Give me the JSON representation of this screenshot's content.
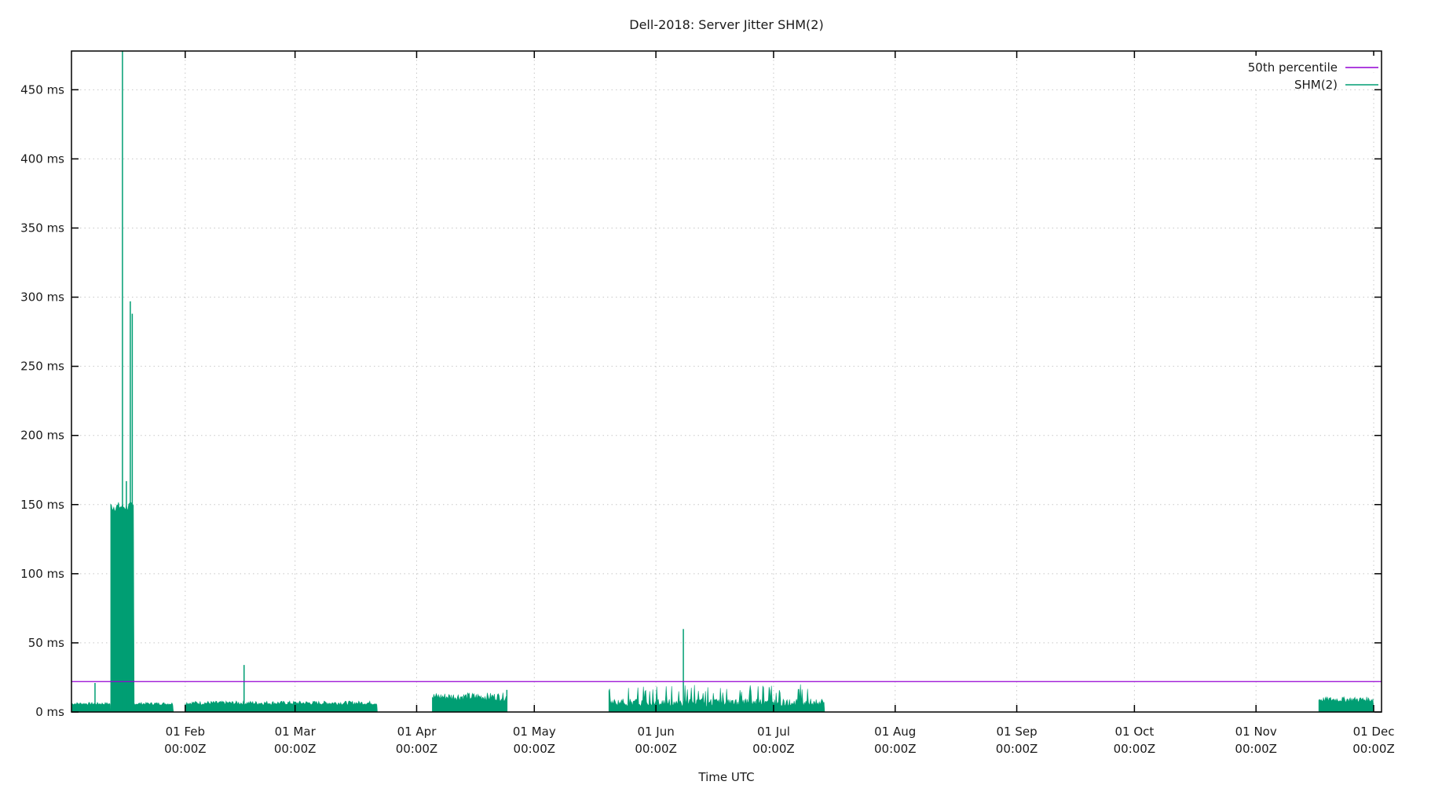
{
  "chart_data": {
    "type": "line",
    "title": "Dell-2018: Server Jitter SHM(2)",
    "xlabel": "Time UTC",
    "ylabel": "",
    "ylim": [
      0,
      478
    ],
    "y_ticks": [
      {
        "value": 0,
        "label": "0 ms"
      },
      {
        "value": 50,
        "label": "50 ms"
      },
      {
        "value": 100,
        "label": "100 ms"
      },
      {
        "value": 150,
        "label": "150 ms"
      },
      {
        "value": 200,
        "label": "200 ms"
      },
      {
        "value": 250,
        "label": "250 ms"
      },
      {
        "value": 300,
        "label": "300 ms"
      },
      {
        "value": 350,
        "label": "350 ms"
      },
      {
        "value": 400,
        "label": "400 ms"
      },
      {
        "value": 450,
        "label": "450 ms"
      }
    ],
    "x_range": [
      "Jan 03",
      "Dec 02"
    ],
    "x_ticks": [
      {
        "label": "01 Feb",
        "sub": "00:00Z",
        "day": 31
      },
      {
        "label": "01 Mar",
        "sub": "00:00Z",
        "day": 59
      },
      {
        "label": "01 Apr",
        "sub": "00:00Z",
        "day": 90
      },
      {
        "label": "01 May",
        "sub": "00:00Z",
        "day": 120
      },
      {
        "label": "01 Jun",
        "sub": "00:00Z",
        "day": 151
      },
      {
        "label": "01 Jul",
        "sub": "00:00Z",
        "day": 181
      },
      {
        "label": "01 Aug",
        "sub": "00:00Z",
        "day": 212
      },
      {
        "label": "01 Sep",
        "sub": "00:00Z",
        "day": 243
      },
      {
        "label": "01 Oct",
        "sub": "00:00Z",
        "day": 273
      },
      {
        "label": "01 Nov",
        "sub": "00:00Z",
        "day": 304
      },
      {
        "label": "01 Dec",
        "sub": "00:00Z",
        "day": 334
      }
    ],
    "grid": true,
    "legend_position": "top-right",
    "legend": [
      {
        "name": "50th percentile",
        "color": "#9400d3"
      },
      {
        "name": "SHM(2)",
        "color": "#009e73"
      }
    ],
    "series": [
      {
        "name": "50th percentile",
        "color": "#9400d3",
        "constant_value": 22
      },
      {
        "name": "SHM(2)",
        "color": "#009e73",
        "segments": [
          {
            "start_day": 2,
            "end_day": 12,
            "base": 5,
            "peak": 7,
            "spikes": [
              {
                "day": 8,
                "value": 21
              }
            ]
          },
          {
            "start_day": 12,
            "end_day": 18,
            "base": 145,
            "peak": 152,
            "spikes": [
              {
                "day": 15,
                "value": 478
              },
              {
                "day": 16,
                "value": 167
              },
              {
                "day": 17,
                "value": 297
              },
              {
                "day": 17.5,
                "value": 288
              }
            ]
          },
          {
            "start_day": 18,
            "end_day": 28,
            "base": 5,
            "peak": 7,
            "spikes": []
          },
          {
            "start_day": 31,
            "end_day": 80,
            "base": 5,
            "peak": 8,
            "spikes": [
              {
                "day": 46,
                "value": 34
              }
            ]
          },
          {
            "start_day": 94,
            "end_day": 113,
            "base": 8,
            "peak": 14,
            "spikes": [
              {
                "day": 113,
                "value": 16
              }
            ]
          },
          {
            "start_day": 139,
            "end_day": 194,
            "base": 4,
            "peak": 20,
            "spikes": [
              {
                "day": 158,
                "value": 60
              }
            ]
          },
          {
            "start_day": 320,
            "end_day": 334,
            "base": 7,
            "peak": 11,
            "spikes": []
          }
        ]
      }
    ]
  }
}
